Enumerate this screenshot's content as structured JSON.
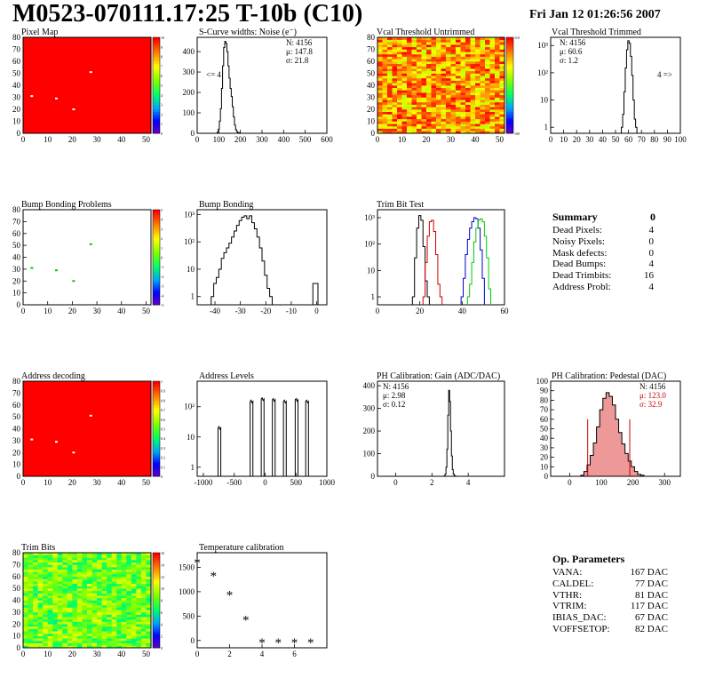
{
  "page": {
    "title": "M0523-070111.17:25 T-10b (C10)",
    "date": "Fri Jan 12 01:26:56 2007"
  },
  "colors": {
    "map_red": "#ff0000",
    "histo_line": "#000000",
    "trim_red": "#cc0000",
    "trim_blue": "#0000cc",
    "trim_green": "#00cc00",
    "pedestal_red": "#cc0000",
    "bump_green": "#00cc00"
  },
  "chart_data": [
    {
      "id": "pixel-map",
      "type": "heatmap",
      "title": "Pixel Map",
      "xlim": [
        0,
        52
      ],
      "ylim": [
        0,
        80
      ],
      "x_ticks": [
        0,
        10,
        20,
        30,
        40,
        50
      ],
      "y_ticks": [
        0,
        10,
        20,
        30,
        40,
        50,
        60,
        70,
        80
      ],
      "z_ticks": [
        0,
        1,
        2,
        3,
        4,
        5,
        6,
        7,
        8,
        9,
        10
      ],
      "fill_value": 10,
      "special_pixels": [
        {
          "x": 3,
          "y": 31
        },
        {
          "x": 13,
          "y": 29
        },
        {
          "x": 20,
          "y": 20
        },
        {
          "x": 27,
          "y": 51
        }
      ]
    },
    {
      "id": "scurve-widths",
      "type": "histogram",
      "title": "S-Curve widths: Noise (e⁻)",
      "xlim": [
        0,
        600
      ],
      "ylim": [
        0,
        470
      ],
      "x_ticks": [
        0,
        100,
        200,
        300,
        400,
        500,
        600
      ],
      "y_ticks": [
        0,
        100,
        200,
        300,
        400
      ],
      "stats": {
        "N": "4156",
        "mu": "147.8",
        "sigma": "21.8"
      },
      "annotation": "<= 4",
      "x": [
        95,
        100,
        105,
        110,
        115,
        120,
        125,
        130,
        135,
        140,
        145,
        150,
        155,
        160,
        165,
        170,
        175,
        180,
        185,
        190,
        195,
        200
      ],
      "values": [
        5,
        20,
        60,
        120,
        220,
        330,
        420,
        450,
        440,
        400,
        330,
        270,
        220,
        180,
        130,
        80,
        40,
        18,
        8,
        4,
        2,
        0
      ]
    },
    {
      "id": "vcal-untrimmed",
      "type": "heatmap",
      "title": "Vcal Threshold Untrimmed",
      "xlim": [
        0,
        52
      ],
      "ylim": [
        0,
        80
      ],
      "x_ticks": [
        0,
        10,
        20,
        30,
        40,
        50
      ],
      "y_ticks": [
        0,
        10,
        20,
        30,
        40,
        50,
        60,
        70,
        80
      ],
      "z_ticks": [
        100,
        110
      ]
    },
    {
      "id": "vcal-trimmed",
      "type": "histogram",
      "title": "Vcal Threshold Trimmed",
      "log_y": true,
      "xlim": [
        0,
        100
      ],
      "ylim": [
        0.6,
        2000
      ],
      "x_ticks": [
        0,
        10,
        20,
        30,
        40,
        50,
        60,
        70,
        80,
        90,
        100
      ],
      "y_ticks": [
        1,
        10,
        100,
        1000
      ],
      "stats": {
        "N": "4156",
        "mu": "60.6",
        "sigma": "1.2"
      },
      "annotation": "4 =>",
      "x": [
        55,
        56,
        57,
        58,
        59,
        60,
        61,
        62,
        63,
        64,
        65,
        66
      ],
      "values": [
        1,
        3,
        20,
        150,
        700,
        1500,
        1200,
        400,
        80,
        10,
        2,
        1
      ]
    },
    {
      "id": "bump-problems",
      "type": "heatmap",
      "title": "Bump Bonding Problems",
      "xlim": [
        0,
        52
      ],
      "ylim": [
        0,
        80
      ],
      "x_ticks": [
        0,
        10,
        20,
        30,
        40,
        50
      ],
      "y_ticks": [
        0,
        10,
        20,
        30,
        40,
        50,
        60,
        70,
        80
      ],
      "z_ticks": [
        -5,
        -4,
        -3,
        -2,
        -1,
        0,
        1,
        2,
        3,
        4,
        5
      ],
      "special_pixels": [
        {
          "x": 3,
          "y": 31
        },
        {
          "x": 13,
          "y": 29
        },
        {
          "x": 20,
          "y": 20
        },
        {
          "x": 27,
          "y": 51
        }
      ]
    },
    {
      "id": "bump-bonding",
      "type": "histogram",
      "title": "Bump Bonding",
      "log_y": true,
      "xlim": [
        -47,
        4
      ],
      "ylim": [
        0.5,
        1500
      ],
      "x_ticks": [
        -40,
        -30,
        -20,
        -10,
        0
      ],
      "y_ticks": [
        1,
        10,
        100,
        1000
      ],
      "x": [
        -41,
        -40,
        -39,
        -38,
        -37,
        -36,
        -35,
        -34,
        -33,
        -32,
        -31,
        -30,
        -29,
        -28,
        -27,
        -26,
        -25,
        -24,
        -23,
        -22,
        -21,
        -20,
        -19,
        -18,
        -17,
        -1,
        0
      ],
      "values": [
        1,
        3,
        5,
        10,
        25,
        40,
        60,
        90,
        150,
        250,
        400,
        600,
        800,
        900,
        700,
        900,
        500,
        300,
        150,
        60,
        20,
        6,
        2,
        1,
        0.5,
        3,
        3
      ]
    },
    {
      "id": "trim-bit-test",
      "type": "histogram",
      "title": "Trim Bit Test",
      "log_y": true,
      "xlim": [
        0,
        60
      ],
      "ylim": [
        0.5,
        2000
      ],
      "x_ticks": [
        0,
        20,
        40,
        60
      ],
      "y_ticks": [
        1,
        10,
        100,
        1000
      ],
      "series": [
        {
          "name": "",
          "x": [
            17,
            18,
            19,
            20,
            21,
            22,
            23,
            24
          ],
          "values": [
            1,
            30,
            400,
            1200,
            800,
            80,
            4,
            1
          ]
        },
        {
          "name": "",
          "x": [
            22,
            23,
            24,
            25,
            26,
            27,
            28,
            29,
            30
          ],
          "values": [
            1,
            20,
            200,
            700,
            800,
            300,
            40,
            3,
            1
          ]
        },
        {
          "name": "",
          "x": [
            40,
            41,
            42,
            43,
            44,
            45,
            46,
            47,
            48,
            49,
            50
          ],
          "values": [
            1,
            5,
            40,
            150,
            400,
            700,
            1000,
            900,
            400,
            60,
            5
          ]
        },
        {
          "name": "",
          "x": [
            43,
            44,
            45,
            46,
            47,
            48,
            49,
            50,
            51,
            52,
            53
          ],
          "values": [
            1,
            3,
            20,
            120,
            400,
            800,
            900,
            700,
            200,
            30,
            2
          ]
        }
      ]
    },
    {
      "id": "address-decoding",
      "type": "heatmap",
      "title": "Address decoding",
      "xlim": [
        0,
        52
      ],
      "ylim": [
        0,
        80
      ],
      "x_ticks": [
        0,
        10,
        20,
        30,
        40,
        50
      ],
      "y_ticks": [
        0,
        10,
        20,
        30,
        40,
        50,
        60,
        70,
        80
      ],
      "z_ticks": [
        0,
        0.1,
        0.2,
        0.3,
        0.4,
        0.5,
        0.6,
        0.7,
        0.8,
        0.9,
        1
      ],
      "fill_value": 1,
      "special_pixels": [
        {
          "x": 3,
          "y": 31
        },
        {
          "x": 13,
          "y": 29
        },
        {
          "x": 20,
          "y": 20
        },
        {
          "x": 27,
          "y": 51
        }
      ]
    },
    {
      "id": "address-levels",
      "type": "histogram",
      "title": "Address Levels",
      "log_y": true,
      "xlim": [
        -1100,
        1000
      ],
      "ylim": [
        0.5,
        700
      ],
      "x_ticks": [
        -1000,
        -500,
        0,
        500,
        1000
      ],
      "y_ticks": [
        1,
        10,
        100
      ],
      "peaks": [
        -740,
        -220,
        -40,
        140,
        320,
        510,
        680
      ],
      "peak_heights": [
        20,
        150,
        180,
        170,
        150,
        170,
        150
      ]
    },
    {
      "id": "ph-gain",
      "type": "histogram",
      "title": "PH Calibration: Gain (ADC/DAC)",
      "xlim": [
        -1,
        6
      ],
      "ylim": [
        0,
        420
      ],
      "x_ticks": [
        0,
        2,
        4
      ],
      "y_ticks": [
        0,
        100,
        200,
        300,
        400
      ],
      "stats": {
        "N": "4156",
        "mu": "2.98",
        "sigma": "0.12"
      },
      "x": [
        2.7,
        2.75,
        2.8,
        2.85,
        2.9,
        2.95,
        3.0,
        3.05,
        3.1,
        3.15,
        3.2,
        3.25,
        3.3
      ],
      "values": [
        2,
        10,
        40,
        120,
        270,
        380,
        330,
        200,
        90,
        30,
        10,
        3,
        1
      ]
    },
    {
      "id": "ph-pedestal",
      "type": "histogram",
      "title": "PH Calibration: Pedestal (DAC)",
      "xlim": [
        -60,
        350
      ],
      "ylim": [
        0,
        100
      ],
      "x_ticks": [
        0,
        100,
        200,
        300
      ],
      "y_ticks": [
        0,
        10,
        20,
        30,
        40,
        50,
        60,
        70,
        80,
        90,
        100
      ],
      "stats": {
        "N": "4156",
        "mu": "123.0",
        "sigma": "32.9"
      },
      "fit_lines": [
        57,
        190
      ],
      "x": [
        40,
        50,
        60,
        70,
        80,
        90,
        100,
        110,
        120,
        130,
        140,
        150,
        160,
        170,
        180,
        190,
        200,
        210,
        220,
        230
      ],
      "values": [
        1,
        5,
        12,
        22,
        35,
        52,
        70,
        82,
        88,
        84,
        75,
        60,
        46,
        34,
        24,
        16,
        10,
        5,
        2,
        1
      ]
    },
    {
      "id": "trim-bits",
      "type": "heatmap",
      "title": "Trim Bits",
      "xlim": [
        0,
        52
      ],
      "ylim": [
        0,
        80
      ],
      "x_ticks": [
        0,
        10,
        20,
        30,
        40,
        50
      ],
      "y_ticks": [
        0,
        10,
        20,
        30,
        40,
        50,
        60,
        70,
        80
      ],
      "z_ticks": [
        0,
        2,
        4,
        6,
        8,
        10,
        12,
        14,
        16
      ]
    },
    {
      "id": "temperature-calibration",
      "type": "scatter",
      "title": "Temperature calibration",
      "xlim": [
        0,
        8
      ],
      "ylim": [
        -150,
        1800
      ],
      "x_ticks": [
        0,
        2,
        4,
        6
      ],
      "y_ticks": [
        0,
        500,
        1000,
        1500
      ],
      "x": [
        0,
        1,
        2,
        3,
        4,
        5,
        6,
        7
      ],
      "y": [
        1600,
        1330,
        930,
        420,
        -40,
        -40,
        -40,
        -40
      ]
    }
  ],
  "summary": {
    "title": "Summary",
    "value": "0",
    "rows": [
      {
        "label": "Dead Pixels:",
        "value": "4"
      },
      {
        "label": "Noisy Pixels:",
        "value": "0"
      },
      {
        "label": "Mask defects:",
        "value": "0"
      },
      {
        "label": "Dead Bumps:",
        "value": "4"
      },
      {
        "label": "Dead Trimbits:",
        "value": "16"
      },
      {
        "label": "Address Probl:",
        "value": "4"
      }
    ]
  },
  "op_params": {
    "title": "Op. Parameters",
    "rows": [
      {
        "label": "VANA:",
        "value": "167 DAC"
      },
      {
        "label": "CALDEL:",
        "value": "77 DAC"
      },
      {
        "label": "VTHR:",
        "value": "81 DAC"
      },
      {
        "label": "VTRIM:",
        "value": "117 DAC"
      },
      {
        "label": "IBIAS_DAC:",
        "value": "67 DAC"
      },
      {
        "label": "VOFFSETOP:",
        "value": "82 DAC"
      }
    ]
  }
}
